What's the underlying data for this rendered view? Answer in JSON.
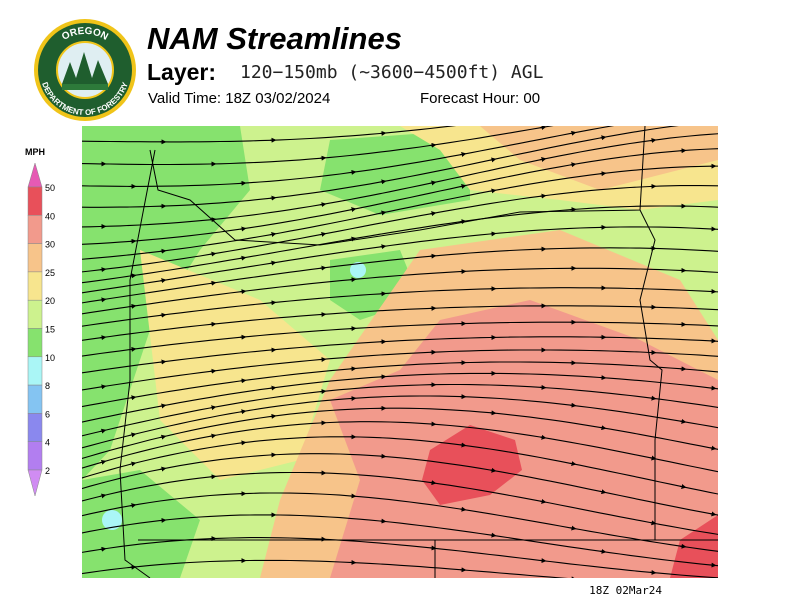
{
  "header": {
    "title": "NAM Streamlines",
    "layer_label": "Layer:",
    "layer_value": "120−150mb (~3600−4500ft) AGL",
    "valid_time": "Valid Time: 18Z 03/02/2024",
    "forecast_hour": "Forecast Hour: 00"
  },
  "logo": {
    "top_text": "OREGON",
    "bottom_text": "DEPARTMENT OF FORESTRY"
  },
  "legend": {
    "title": "MPH",
    "ticks": [
      "50",
      "40",
      "30",
      "25",
      "20",
      "15",
      "10",
      "8",
      "6",
      "4",
      "2"
    ],
    "colors": [
      "#e65ab4",
      "#e8505a",
      "#f29a8c",
      "#f7c48a",
      "#f7e58e",
      "#cdf28e",
      "#86e26e",
      "#aaf6f6",
      "#84c4f2",
      "#8a88ee",
      "#b27ef0",
      "#d08cf2"
    ]
  },
  "footer": {
    "timestamp": "18Z 02Mar24"
  }
}
